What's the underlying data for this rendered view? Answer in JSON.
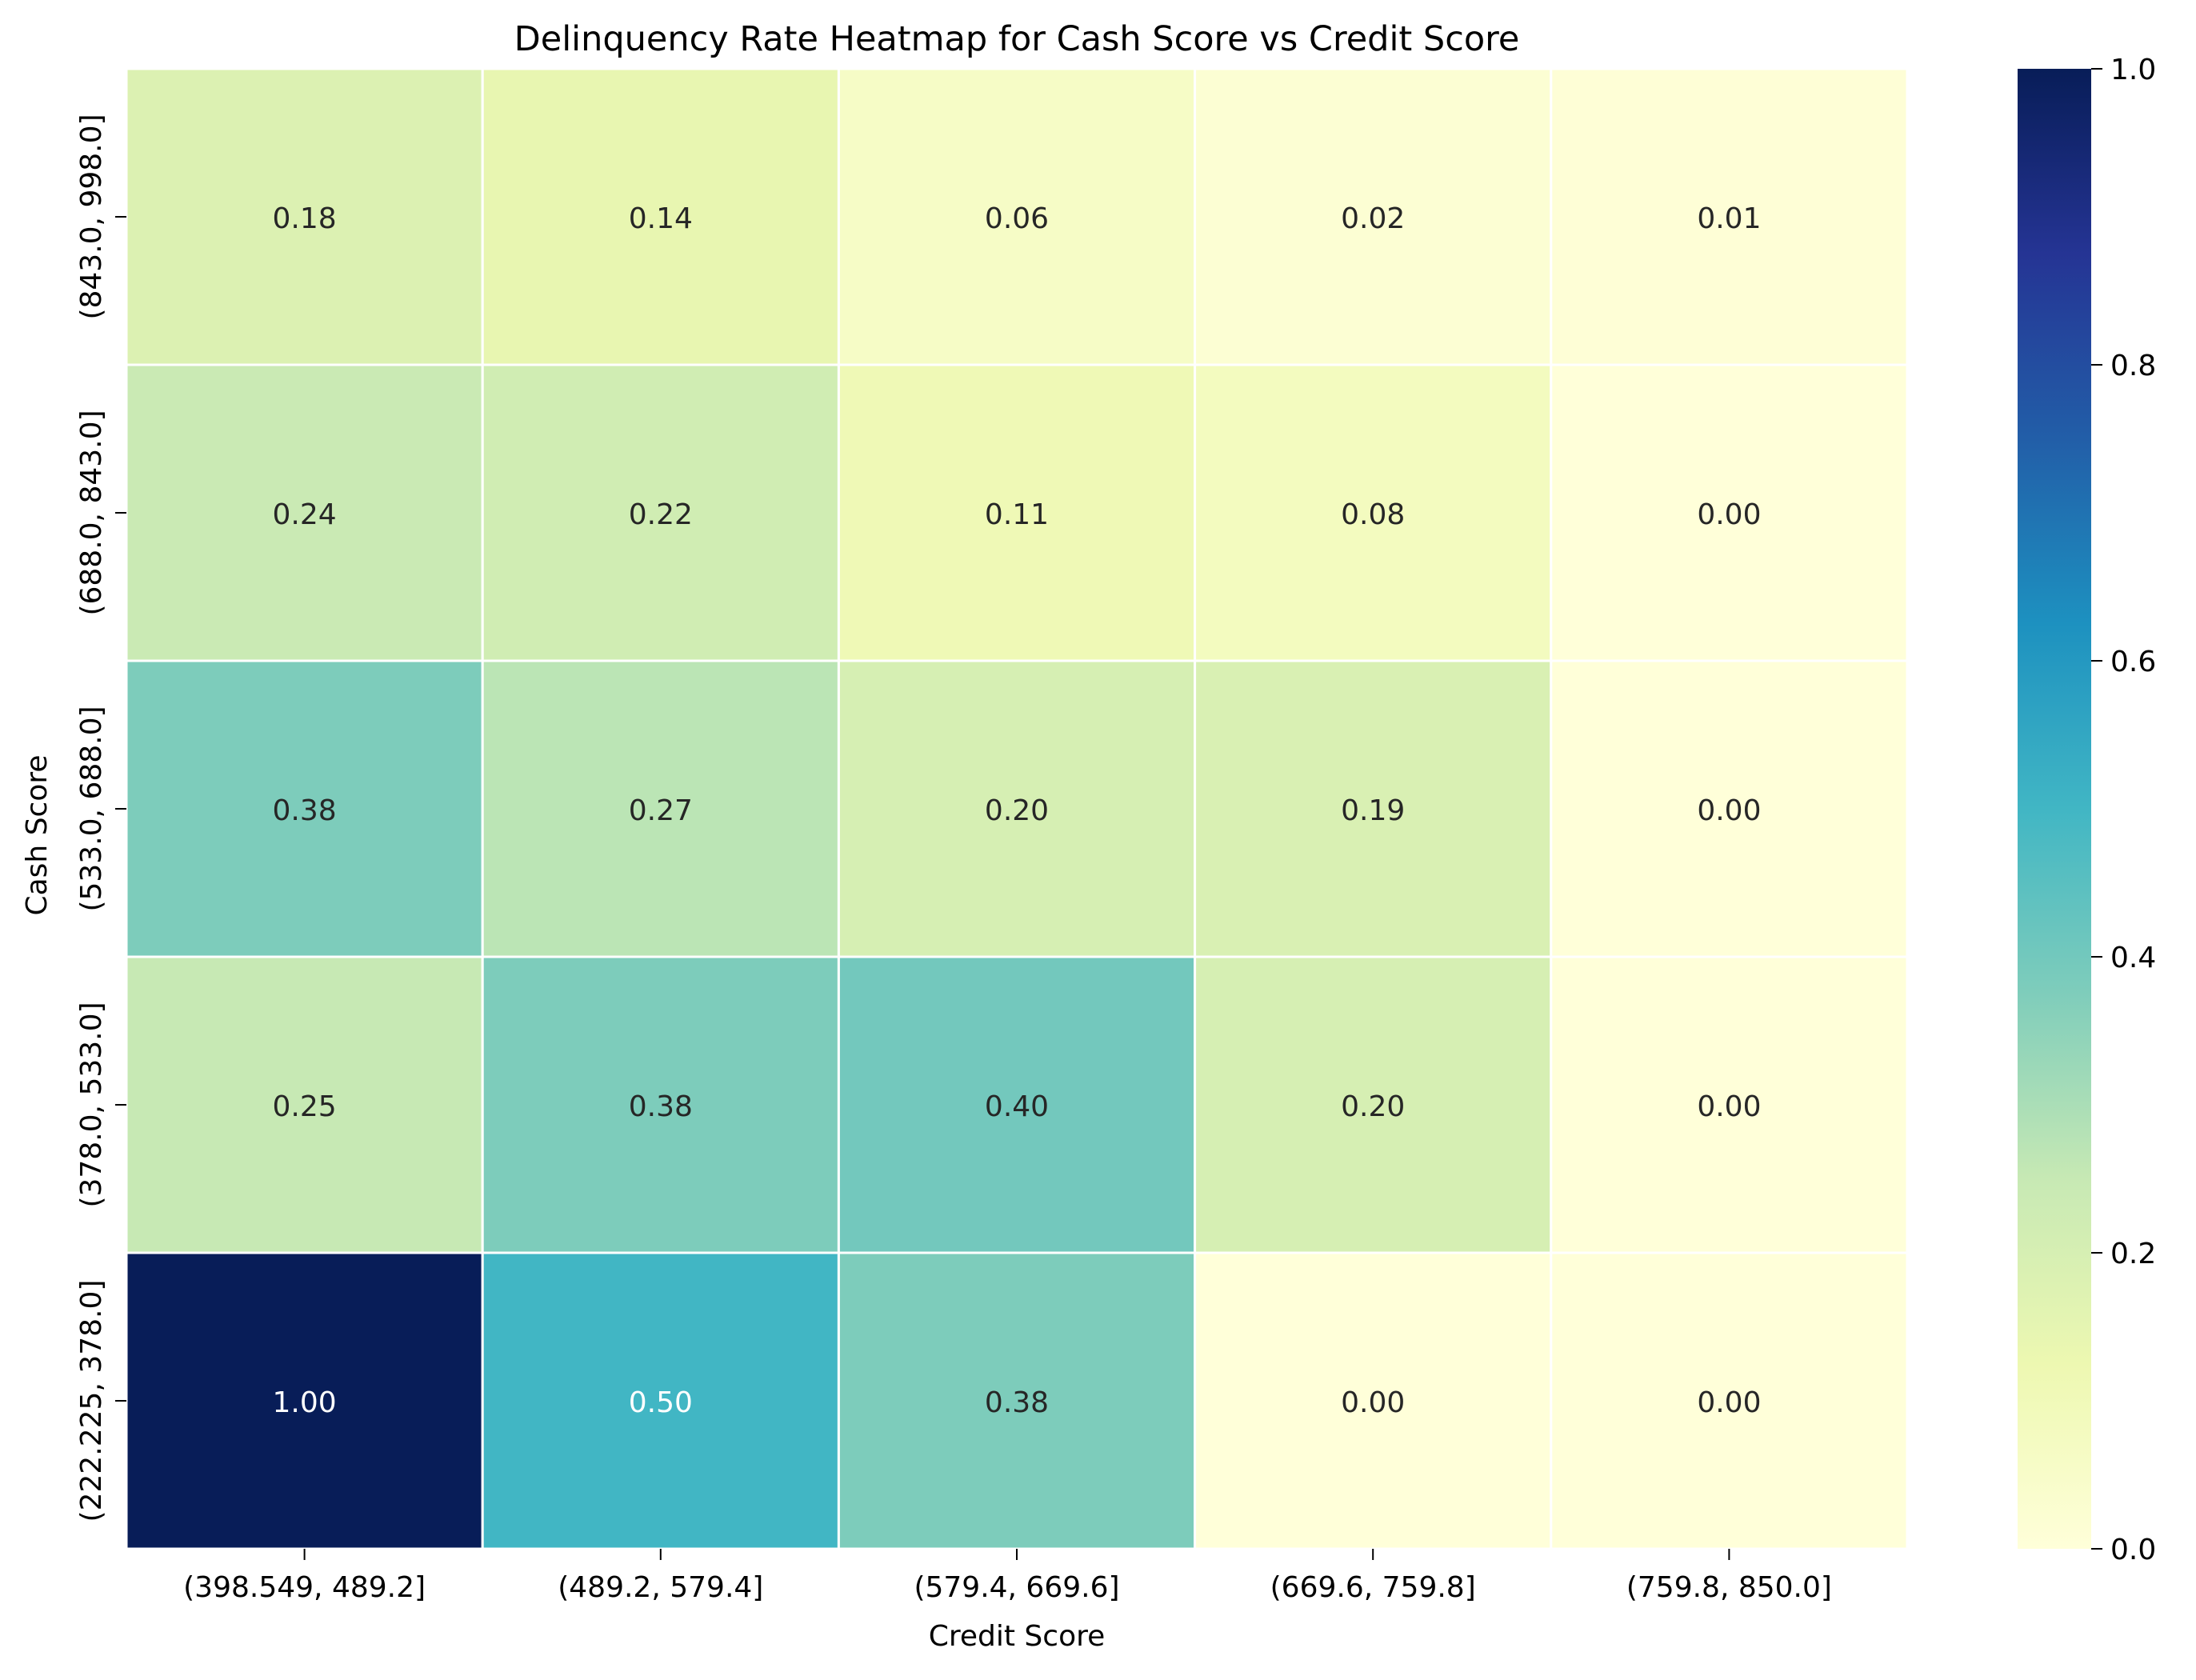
{
  "chart_data": {
    "type": "heatmap",
    "title": "Delinquency Rate Heatmap for Cash Score vs Credit Score",
    "xlabel": "Credit Score",
    "ylabel": "Cash Score",
    "x_categories": [
      "(398.549, 489.2]",
      "(489.2, 579.4]",
      "(579.4, 669.6]",
      "(669.6, 759.8]",
      "(759.8, 850.0]"
    ],
    "y_categories": [
      "(843.0, 998.0]",
      "(688.0, 843.0]",
      "(533.0, 688.0]",
      "(378.0, 533.0]",
      "(222.225, 378.0]"
    ],
    "values": [
      [
        0.18,
        0.14,
        0.06,
        0.02,
        0.01
      ],
      [
        0.24,
        0.22,
        0.11,
        0.08,
        0.0
      ],
      [
        0.38,
        0.27,
        0.2,
        0.19,
        0.0
      ],
      [
        0.25,
        0.38,
        0.4,
        0.2,
        0.0
      ],
      [
        1.0,
        0.5,
        0.38,
        0.0,
        0.0
      ]
    ],
    "value_format": "0.00",
    "colormap": "YlGnBu",
    "colorbar": {
      "range": [
        0.0,
        1.0
      ],
      "ticks": [
        0.0,
        0.2,
        0.4,
        0.6,
        0.8,
        1.0
      ],
      "tick_labels": [
        "0.0",
        "0.2",
        "0.4",
        "0.6",
        "0.8",
        "1.0"
      ]
    },
    "colors": {
      "cell_border": "#ffffff",
      "annotation_dark_text": "#262626",
      "annotation_light_text": "#ffffff",
      "axis_text": "#000000"
    }
  }
}
